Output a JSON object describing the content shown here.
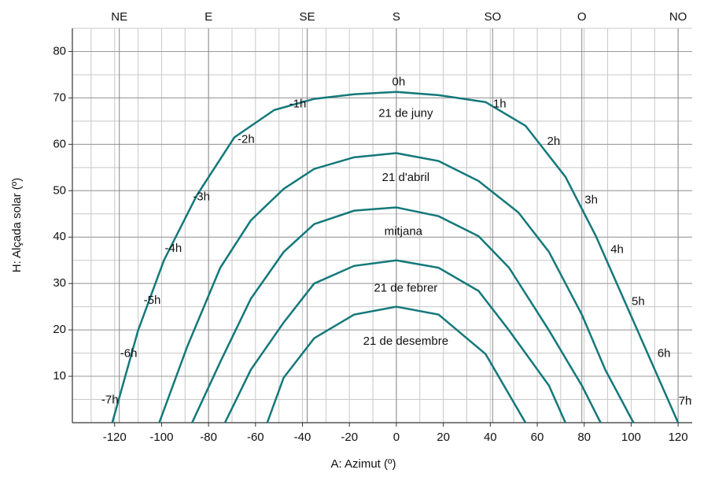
{
  "chart_data": {
    "type": "line",
    "xlabel": "A: Azimut (º)",
    "ylabel": "H: Alçada solar (º)",
    "xlim": [
      -138,
      126
    ],
    "ylim": [
      0,
      85
    ],
    "xticks": [
      -120,
      -100,
      -80,
      -60,
      -40,
      -20,
      0,
      20,
      40,
      60,
      80,
      100,
      120
    ],
    "yticks": [
      10,
      20,
      30,
      40,
      50,
      60,
      70,
      80
    ],
    "minor_xticks": [
      -130,
      -120,
      -110,
      -100,
      -90,
      -80,
      -70,
      -60,
      -50,
      -40,
      -30,
      -20,
      -10,
      0,
      10,
      20,
      30,
      40,
      50,
      60,
      70,
      80,
      90,
      100,
      110,
      120
    ],
    "minor_yticks": [
      5,
      10,
      15,
      20,
      25,
      30,
      35,
      40,
      45,
      50,
      55,
      60,
      65,
      70,
      75,
      80,
      85
    ],
    "x2ticks": [
      {
        "value": -118,
        "label": "NE"
      },
      {
        "value": -80,
        "label": "E"
      },
      {
        "value": -38,
        "label": "SE"
      },
      {
        "value": 0,
        "label": "S"
      },
      {
        "value": 41,
        "label": "SO"
      },
      {
        "value": 79,
        "label": "O"
      },
      {
        "value": 120,
        "label": "NO"
      }
    ],
    "grid": true,
    "series": [
      {
        "name": "21 de juny",
        "color": "#14787a",
        "x": [
          -121,
          -110,
          -99,
          -85,
          -69,
          -52,
          -35,
          -18,
          0,
          18,
          38,
          55,
          72,
          85,
          102,
          120
        ],
        "values": [
          0,
          19.9,
          35,
          49,
          61.5,
          67.4,
          69.8,
          70.8,
          71.3,
          70.6,
          69.1,
          64,
          53,
          40.2,
          20.7,
          0
        ]
      },
      {
        "name": "21 d'abril",
        "color": "#14787a",
        "x": [
          -101,
          -89,
          -75,
          -62,
          -48,
          -35,
          -18,
          0,
          18,
          35,
          52,
          65,
          79,
          89,
          101
        ],
        "values": [
          0,
          16.5,
          33.4,
          43.6,
          50.4,
          54.7,
          57.2,
          58.1,
          56.4,
          52.1,
          45.3,
          36.8,
          23.3,
          11.4,
          0
        ]
      },
      {
        "name": "mitjana",
        "color": "#14787a",
        "x": [
          -87,
          -75,
          -62,
          -48,
          -35,
          -18,
          0,
          18,
          35,
          48,
          65,
          79,
          87
        ],
        "values": [
          0,
          13.1,
          26.7,
          36.8,
          42.8,
          45.7,
          46.4,
          44.5,
          40.2,
          33.4,
          19.9,
          8,
          0
        ]
      },
      {
        "name": "21 de febrer",
        "color": "#14787a",
        "x": [
          -73,
          -62,
          -48,
          -35,
          -18,
          0,
          18,
          35,
          48,
          65,
          72
        ],
        "values": [
          0,
          11.4,
          21.6,
          30,
          33.8,
          35,
          33.4,
          28.4,
          19.9,
          8,
          0
        ]
      },
      {
        "name": "21 de desembre",
        "color": "#14787a",
        "x": [
          -55,
          -48,
          -35,
          -18,
          0,
          18,
          38,
          55
        ],
        "values": [
          0,
          9.7,
          18.2,
          23.3,
          25,
          23.3,
          14.8,
          0
        ]
      }
    ],
    "annotations": [
      {
        "text": "0h",
        "x": 1,
        "y": 73.4
      },
      {
        "text": "1h",
        "x": 44,
        "y": 68.6
      },
      {
        "text": "2h",
        "x": 67,
        "y": 60.6
      },
      {
        "text": "3h",
        "x": 83,
        "y": 47.9
      },
      {
        "text": "4h",
        "x": 94,
        "y": 37.2
      },
      {
        "text": "5h",
        "x": 103,
        "y": 26
      },
      {
        "text": "6h",
        "x": 114,
        "y": 14.8
      },
      {
        "text": "7h",
        "x": 123,
        "y": 4.6
      },
      {
        "text": "-1h",
        "x": -42,
        "y": 68.6
      },
      {
        "text": "-2h",
        "x": -64,
        "y": 61
      },
      {
        "text": "-3h",
        "x": -83,
        "y": 48.6
      },
      {
        "text": "-4h",
        "x": -95,
        "y": 37.5
      },
      {
        "text": "-5h",
        "x": -104,
        "y": 26.3
      },
      {
        "text": "-6h",
        "x": -114,
        "y": 14.8
      },
      {
        "text": "-7h",
        "x": -122,
        "y": 4.8
      },
      {
        "text": "21 de juny",
        "x": 4,
        "y": 66.6
      },
      {
        "text": "21 d'abril",
        "x": 4,
        "y": 52.8
      },
      {
        "text": "mitjana",
        "x": 3,
        "y": 41.1
      },
      {
        "text": "21 de febrer",
        "x": 4,
        "y": 28.9
      },
      {
        "text": "21 de desembre",
        "x": 4,
        "y": 17.5
      }
    ]
  }
}
